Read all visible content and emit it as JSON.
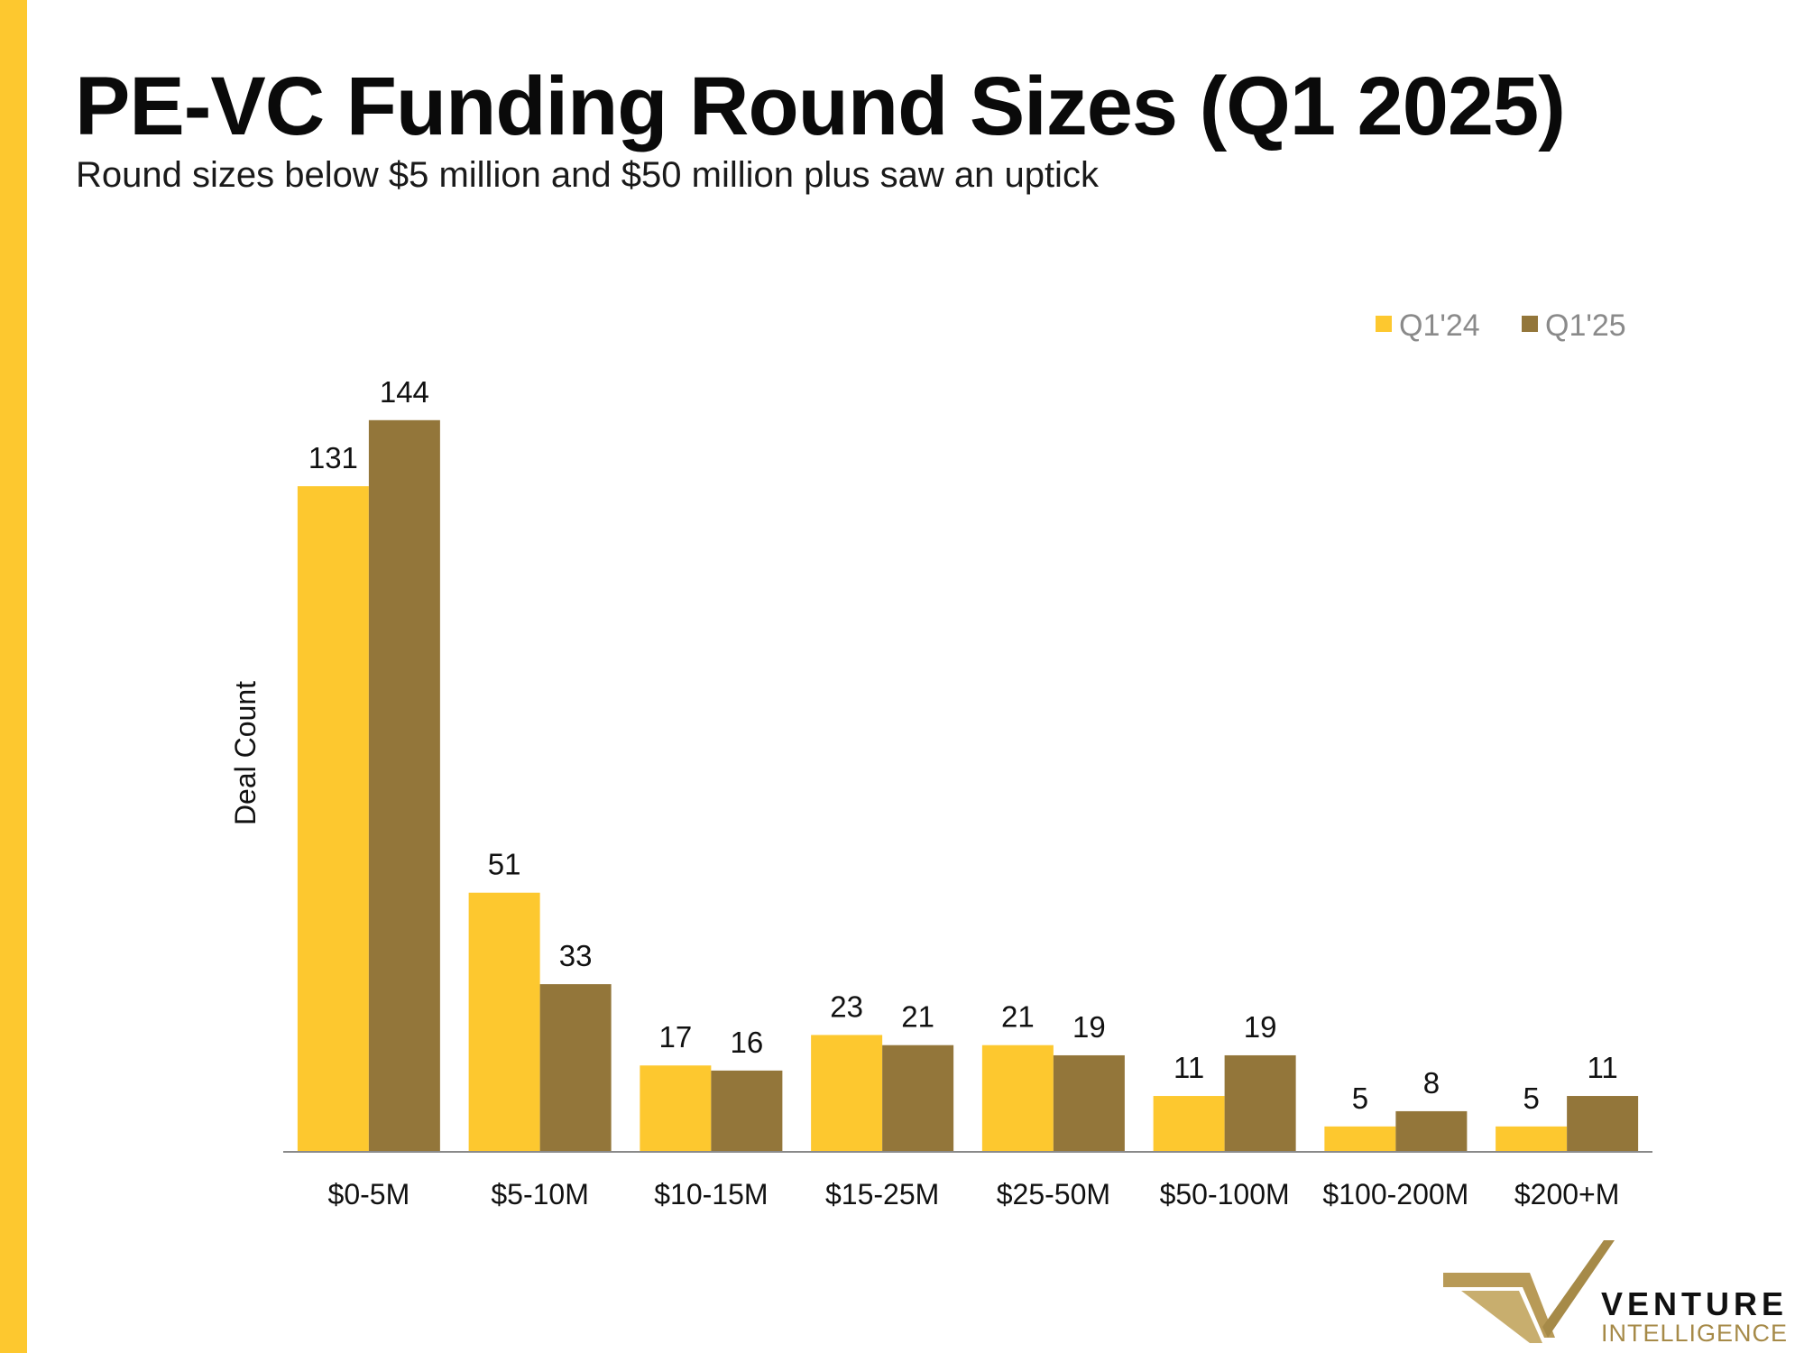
{
  "title": "PE-VC Funding Round Sizes (Q1 2025)",
  "subtitle": "Round sizes below $5 million and $50 million plus saw an uptick",
  "logo": {
    "word": "VENTURE",
    "sub": "INTELLIGENCE"
  },
  "colors": {
    "accent": "#FDC82F",
    "q1_24": "#FDC82F",
    "q1_25": "#93763A",
    "axis": "#8a8a8a"
  },
  "chart_data": {
    "type": "bar",
    "title": "PE-VC Funding Round Sizes (Q1 2025)",
    "subtitle": "Round sizes below $5 million and $50 million plus saw an uptick",
    "xlabel": "",
    "ylabel": "Deal Count",
    "ylim": [
      0,
      150
    ],
    "grid": false,
    "legend_position": "top-right",
    "categories": [
      "$0-5M",
      "$5-10M",
      "$10-15M",
      "$15-25M",
      "$25-50M",
      "$50-100M",
      "$100-200M",
      "$200+M"
    ],
    "series": [
      {
        "name": "Q1'24",
        "color": "#FDC82F",
        "values": [
          131,
          51,
          17,
          23,
          21,
          11,
          5,
          5
        ]
      },
      {
        "name": "Q1'25",
        "color": "#93763A",
        "values": [
          144,
          33,
          16,
          21,
          19,
          19,
          8,
          11
        ]
      }
    ]
  }
}
